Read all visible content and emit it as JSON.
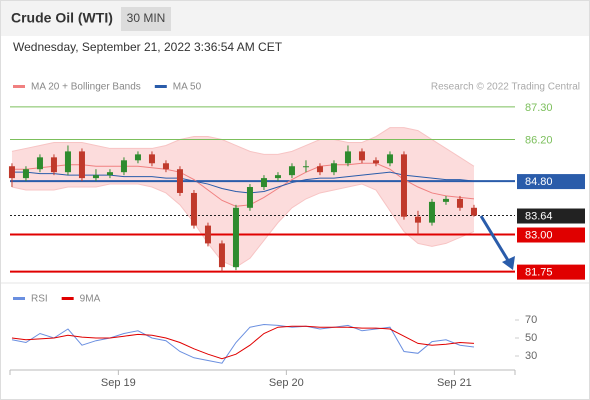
{
  "header": {
    "title": "Crude Oil (WTI)",
    "interval": "30 MIN",
    "timestamp": "Wednesday, September 21, 2022 3:36:54 AM CET"
  },
  "chart_data": [
    {
      "type": "candlestick",
      "legend": [
        {
          "name": "MA 20 + Bollinger Bands",
          "color": "#f08080"
        },
        {
          "name": "MA 50",
          "color": "#2a5caa"
        }
      ],
      "source": "Research © 2022 Trading Central",
      "xlim": [
        -0.14,
        35.93
      ],
      "ylim": [
        81.4,
        87.7
      ],
      "up_color": "#2e8b2e",
      "down_color": "#c0392b",
      "band_color": "#fcdcdc",
      "open": [
        85.3,
        84.9,
        85.2,
        85.6,
        85.1,
        85.8,
        84.9,
        85.0,
        85.1,
        85.5,
        85.7,
        85.4,
        85.2,
        84.4,
        83.3,
        82.7,
        81.9,
        83.9,
        84.6,
        84.9,
        85.0,
        85.3,
        85.3,
        85.1,
        85.4,
        85.8,
        85.5,
        85.4,
        85.7,
        83.6,
        83.4,
        84.1,
        84.2,
        83.9
      ],
      "high": [
        85.4,
        85.3,
        85.7,
        85.7,
        86.0,
        85.9,
        85.2,
        85.2,
        85.6,
        85.8,
        85.8,
        85.5,
        85.3,
        84.5,
        83.4,
        82.8,
        84.0,
        84.7,
        85.0,
        85.1,
        85.4,
        85.5,
        85.4,
        85.5,
        86.0,
        85.9,
        85.6,
        85.8,
        85.8,
        83.8,
        84.2,
        84.3,
        84.3,
        84.0
      ],
      "low": [
        84.6,
        84.8,
        85.1,
        85.0,
        85.0,
        84.8,
        84.8,
        84.9,
        85.0,
        85.4,
        85.3,
        85.1,
        84.3,
        83.2,
        82.6,
        81.75,
        81.8,
        83.8,
        84.5,
        84.8,
        84.9,
        85.1,
        85.0,
        85.0,
        85.3,
        85.4,
        85.3,
        85.3,
        83.5,
        83.0,
        83.3,
        84.0,
        83.8,
        83.6
      ],
      "close": [
        84.9,
        85.2,
        85.6,
        85.1,
        85.8,
        84.9,
        85.0,
        85.1,
        85.5,
        85.7,
        85.4,
        85.2,
        84.4,
        83.3,
        82.7,
        81.9,
        83.9,
        84.6,
        84.9,
        85.0,
        85.3,
        85.3,
        85.1,
        85.4,
        85.8,
        85.5,
        85.4,
        85.7,
        83.6,
        83.4,
        84.1,
        84.2,
        83.9,
        83.64
      ],
      "upper": [
        85.8,
        85.9,
        86.0,
        86.1,
        86.1,
        86.1,
        86.0,
        85.9,
        85.9,
        85.9,
        85.9,
        86.0,
        86.2,
        86.3,
        86.3,
        86.2,
        86.0,
        85.8,
        85.7,
        85.7,
        85.8,
        86.0,
        86.2,
        86.2,
        86.1,
        86.1,
        86.3,
        86.6,
        86.6,
        86.5,
        86.2,
        85.9,
        85.6,
        85.3
      ],
      "lower": [
        84.6,
        84.5,
        84.5,
        84.5,
        84.6,
        84.6,
        84.6,
        84.7,
        84.7,
        84.7,
        84.6,
        84.4,
        84.0,
        83.4,
        82.7,
        82.1,
        81.9,
        82.2,
        82.8,
        83.4,
        83.9,
        84.2,
        84.4,
        84.5,
        84.6,
        84.7,
        84.5,
        83.8,
        83.1,
        82.7,
        82.6,
        82.7,
        82.9,
        83.1
      ],
      "ma20": [
        85.2,
        85.2,
        85.25,
        85.3,
        85.35,
        85.35,
        85.3,
        85.3,
        85.3,
        85.3,
        85.25,
        85.2,
        85.1,
        84.85,
        84.5,
        84.15,
        83.95,
        84.0,
        84.25,
        84.55,
        84.85,
        85.1,
        85.3,
        85.35,
        85.35,
        85.4,
        85.4,
        85.2,
        84.85,
        84.6,
        84.4,
        84.3,
        84.25,
        84.2
      ],
      "ma50": [
        85.1,
        85.1,
        85.05,
        85.05,
        85.0,
        85.0,
        85.0,
        85.0,
        84.95,
        84.95,
        84.95,
        84.9,
        84.9,
        84.8,
        84.7,
        84.55,
        84.45,
        84.4,
        84.45,
        84.6,
        84.75,
        84.85,
        84.9,
        84.9,
        84.95,
        85.0,
        85.05,
        85.1,
        85.0,
        84.95,
        84.9,
        84.85,
        84.85,
        84.8
      ],
      "levels": [
        {
          "value": 87.3,
          "label": "87.30",
          "color": "#7cbf5c",
          "style": "solid",
          "box": false
        },
        {
          "value": 86.2,
          "label": "86.20",
          "color": "#7cbf5c",
          "style": "solid",
          "box": false
        },
        {
          "value": 84.8,
          "label": "84.80",
          "color": "#2a5caa",
          "style": "solid",
          "box": true
        },
        {
          "value": 83.64,
          "label": "83.64",
          "color": "#222222",
          "style": "dotted",
          "box": true
        },
        {
          "value": 83.0,
          "label": "83.00",
          "color": "#e00000",
          "style": "solid",
          "box": true
        },
        {
          "value": 81.75,
          "label": "81.75",
          "color": "#e00000",
          "style": "solid",
          "box": true
        }
      ]
    },
    {
      "type": "line",
      "xlim": [
        -0.14,
        35.93
      ],
      "ylim": [
        20,
        80
      ],
      "yticks": [
        30,
        50,
        70
      ],
      "xticks": [
        {
          "value": 7.6,
          "label": "Sep 19"
        },
        {
          "value": 19.6,
          "label": "Sep 20"
        },
        {
          "value": 31.6,
          "label": "Sep 21"
        }
      ],
      "series": [
        {
          "name": "RSI",
          "color": "#6a8fe0",
          "values": [
            48,
            45,
            55,
            50,
            60,
            42,
            47,
            50,
            55,
            58,
            50,
            47,
            35,
            28,
            25,
            22,
            45,
            62,
            65,
            64,
            62,
            63,
            60,
            62,
            64,
            58,
            60,
            62,
            35,
            33,
            46,
            48,
            42,
            40
          ]
        },
        {
          "name": "9MA",
          "color": "#e00000",
          "values": [
            50,
            48,
            49,
            50,
            53,
            51,
            50,
            50,
            52,
            54,
            53,
            50,
            45,
            38,
            32,
            27,
            32,
            42,
            55,
            62,
            63,
            63,
            62,
            62,
            62,
            61,
            61,
            60,
            52,
            44,
            42,
            43,
            45,
            44
          ]
        }
      ]
    }
  ]
}
